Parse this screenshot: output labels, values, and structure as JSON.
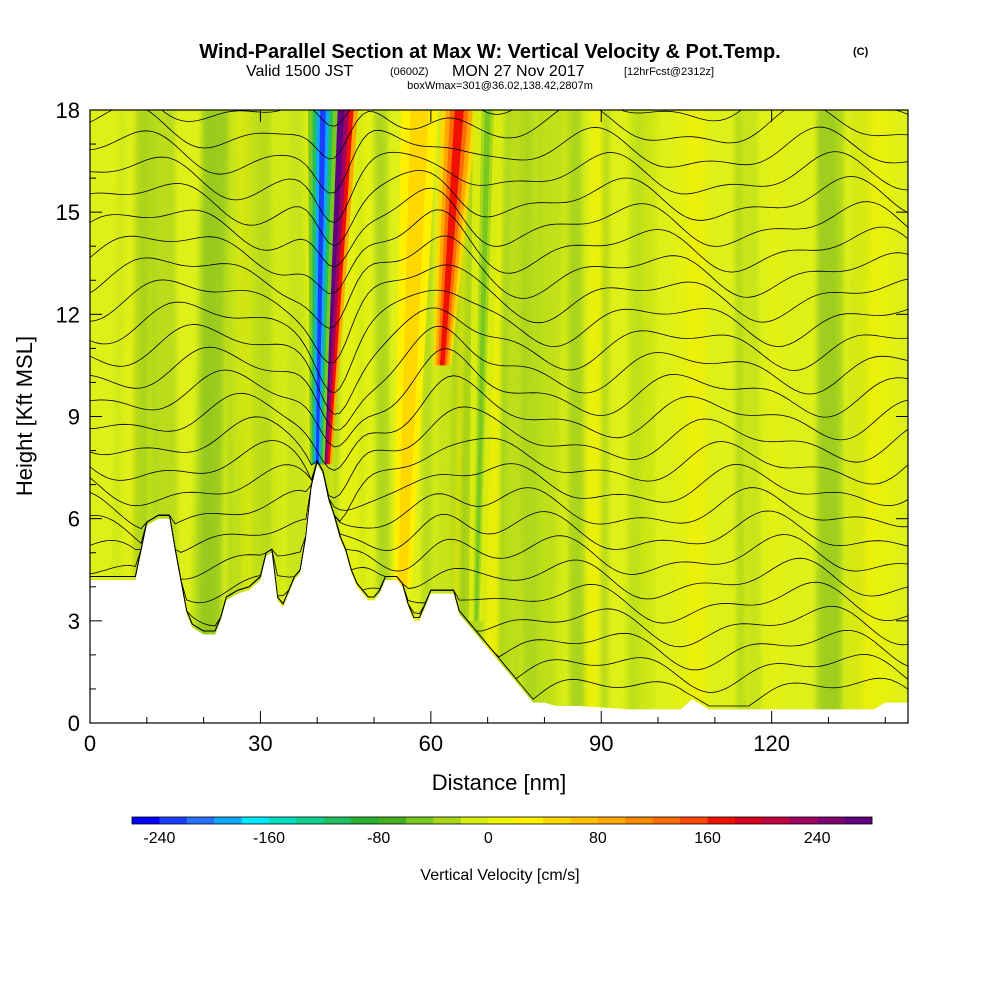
{
  "header": {
    "title": "Wind-Parallel Section at Max W: Vertical Velocity & Pot.Temp.",
    "copyright": "(C)",
    "valid_prefix": "Valid 1500 JST",
    "valid_utc": "(0600Z)",
    "valid_date": "MON 27 Nov 2017",
    "forecast": "[12hrFcst@2312z]",
    "box_info": "boxWmax=301@36.02,138.42,2807m"
  },
  "chart_data": {
    "type": "heatmap",
    "xlabel": "Distance [nm]",
    "ylabel": "Height [Kft MSL]",
    "xlim": [
      0,
      144
    ],
    "ylim": [
      0,
      18
    ],
    "xticks": [
      "0",
      "30",
      "60",
      "90",
      "120"
    ],
    "yticks": [
      "0",
      "3",
      "6",
      "9",
      "12",
      "15",
      "18"
    ],
    "terrain_height_kft": [
      [
        0,
        4.2
      ],
      [
        5,
        4.2
      ],
      [
        8,
        4.2
      ],
      [
        10,
        5.8
      ],
      [
        12,
        6.0
      ],
      [
        14,
        6.0
      ],
      [
        15,
        5.0
      ],
      [
        17,
        3.2
      ],
      [
        18,
        2.8
      ],
      [
        20,
        2.6
      ],
      [
        22,
        2.6
      ],
      [
        23,
        3.0
      ],
      [
        24,
        3.6
      ],
      [
        26,
        3.8
      ],
      [
        28,
        3.9
      ],
      [
        30,
        4.2
      ],
      [
        31,
        4.9
      ],
      [
        32,
        5.0
      ],
      [
        33,
        3.6
      ],
      [
        34,
        3.4
      ],
      [
        35,
        3.8
      ],
      [
        36,
        4.2
      ],
      [
        37,
        4.4
      ],
      [
        38,
        5.4
      ],
      [
        39,
        6.9
      ],
      [
        40,
        7.6
      ],
      [
        41,
        7.3
      ],
      [
        42,
        6.5
      ],
      [
        43,
        6.0
      ],
      [
        44,
        5.4
      ],
      [
        45,
        5.0
      ],
      [
        46,
        4.4
      ],
      [
        47,
        4.0
      ],
      [
        48,
        3.8
      ],
      [
        49,
        3.6
      ],
      [
        50,
        3.6
      ],
      [
        51,
        3.8
      ],
      [
        52,
        4.2
      ],
      [
        53,
        4.2
      ],
      [
        54,
        4.2
      ],
      [
        55,
        4.0
      ],
      [
        56,
        3.4
      ],
      [
        57,
        3.0
      ],
      [
        58,
        3.0
      ],
      [
        59,
        3.4
      ],
      [
        60,
        3.8
      ],
      [
        62,
        3.8
      ],
      [
        64,
        3.8
      ],
      [
        65,
        3.2
      ],
      [
        66,
        3.0
      ],
      [
        68,
        2.6
      ],
      [
        70,
        2.2
      ],
      [
        72,
        1.8
      ],
      [
        74,
        1.4
      ],
      [
        76,
        1.0
      ],
      [
        78,
        0.6
      ],
      [
        80,
        0.6
      ],
      [
        82,
        0.5
      ],
      [
        86,
        0.5
      ],
      [
        95,
        0.4
      ],
      [
        104,
        0.4
      ],
      [
        106,
        0.7
      ],
      [
        109,
        0.4
      ],
      [
        120,
        0.4
      ],
      [
        130,
        0.4
      ],
      [
        138,
        0.4
      ],
      [
        140,
        0.6
      ],
      [
        144,
        0.6
      ]
    ],
    "updraft_bands": [
      {
        "x_top": 44,
        "x_bottom": 41,
        "y_bottom": 7.6,
        "max_cm_s": 301,
        "kind": "up"
      },
      {
        "x_top": 41,
        "x_bottom": 40,
        "y_bottom": 7.6,
        "max_cm_s": -240,
        "kind": "down"
      },
      {
        "x_top": 65,
        "x_bottom": 62,
        "y_bottom": 10.5,
        "max_cm_s": 150,
        "kind": "up"
      },
      {
        "x_top": 58,
        "x_bottom": 55,
        "y_bottom": 4.0,
        "max_cm_s": 40,
        "kind": "up"
      },
      {
        "x_top": 70,
        "x_bottom": 68,
        "y_bottom": 3.0,
        "max_cm_s": -60,
        "kind": "down"
      }
    ],
    "potential_temperature_note": "black isentrope contours, labels in K",
    "colorbar": {
      "title": "Vertical Velocity [cm/s]",
      "range": [
        -260,
        280
      ],
      "step": 20,
      "labels": [
        "-240",
        "-160",
        "-80",
        "0",
        "80",
        "160",
        "240"
      ],
      "colors": [
        "#0000ff",
        "#1a40ff",
        "#2a70ff",
        "#10a8ff",
        "#00e8ff",
        "#00e0c0",
        "#10d090",
        "#20c060",
        "#28b030",
        "#48b020",
        "#78c820",
        "#a8d818",
        "#d8ec10",
        "#f0f400",
        "#fff000",
        "#ffd800",
        "#ffc000",
        "#ffa800",
        "#ff8c00",
        "#ff6c00",
        "#ff4800",
        "#f01000",
        "#d80020",
        "#c00040",
        "#a00060",
        "#800070",
        "#600080"
      ]
    }
  }
}
